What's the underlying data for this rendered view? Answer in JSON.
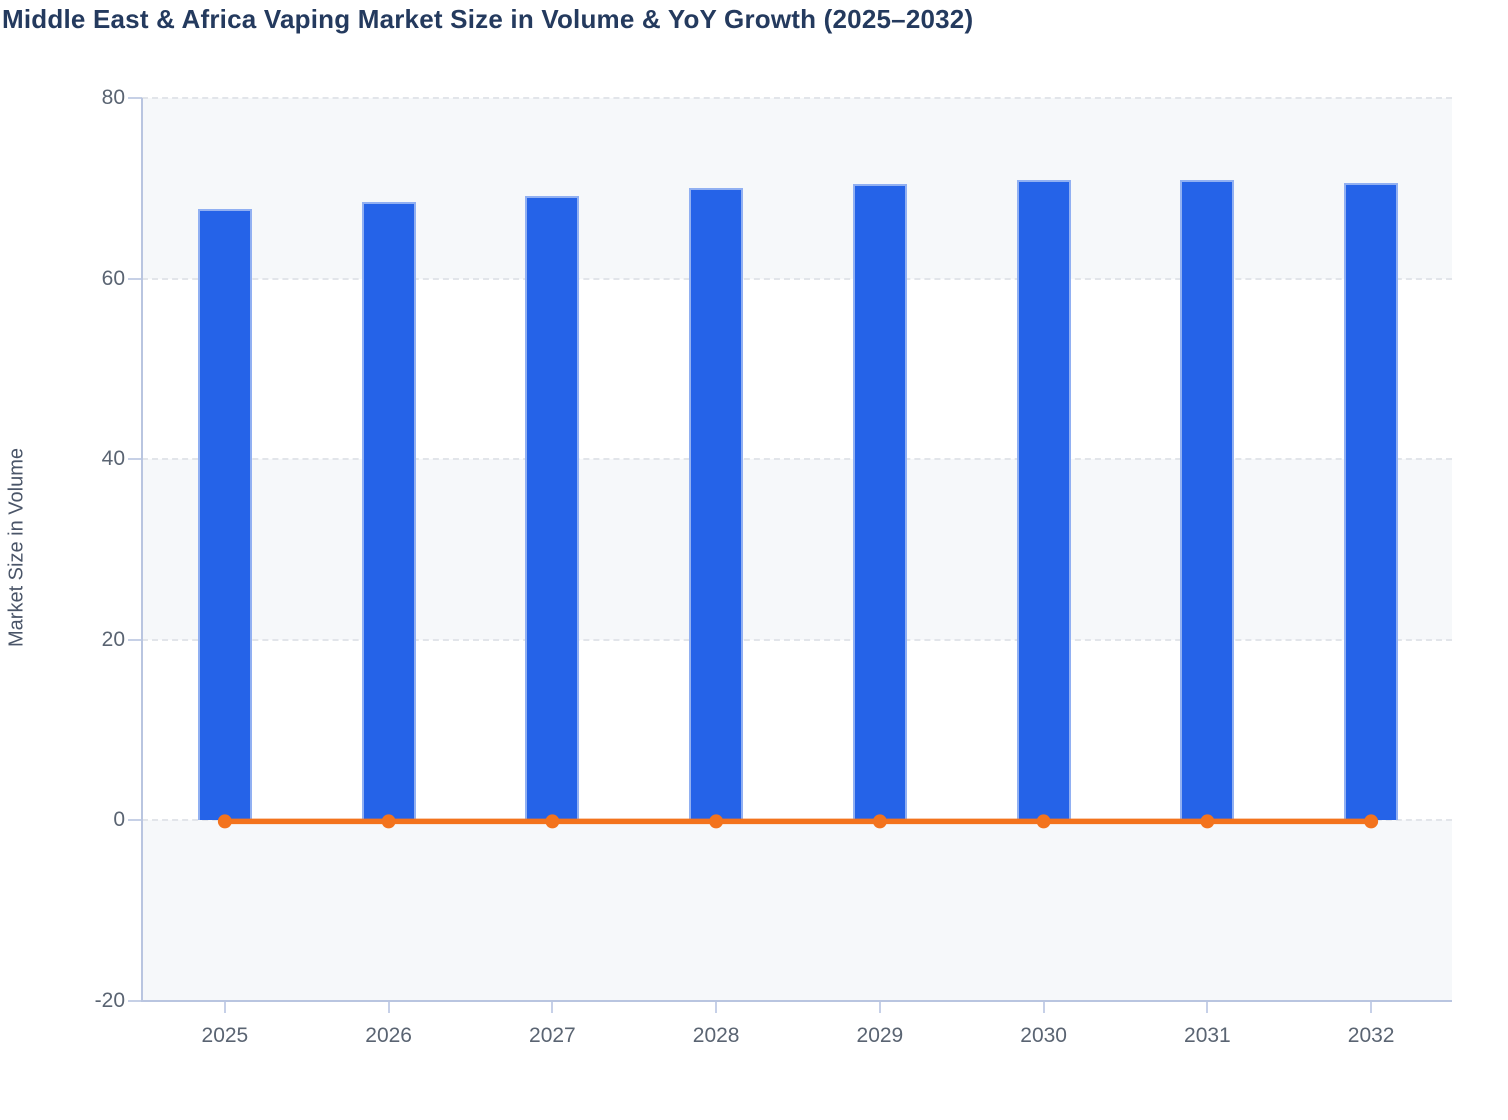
{
  "chart_data": {
    "type": "bar",
    "title": "Middle East & Africa Vaping Market Size in Volume & YoY Growth (2025–2032)",
    "ylabel": "Market Size in Volume",
    "xlabel": "",
    "categories": [
      "2025",
      "2026",
      "2027",
      "2028",
      "2029",
      "2030",
      "2031",
      "2032"
    ],
    "series": [
      {
        "name": "Market Size in Volume",
        "type": "bar",
        "color": "#2563e8",
        "values": [
          67.7,
          68.5,
          69.1,
          70.0,
          70.5,
          70.9,
          70.9,
          70.6
        ]
      },
      {
        "name": "YoY Growth",
        "type": "line",
        "color": "#f3731d",
        "values": [
          0,
          0,
          0,
          0,
          0,
          0,
          0,
          0
        ]
      }
    ],
    "ylim": [
      -20,
      80
    ],
    "yticks": [
      80,
      60,
      40,
      20,
      0,
      -20
    ],
    "grid": "horizontal-dashed",
    "plot_bands": "alternating-shaded",
    "legend": "none"
  }
}
